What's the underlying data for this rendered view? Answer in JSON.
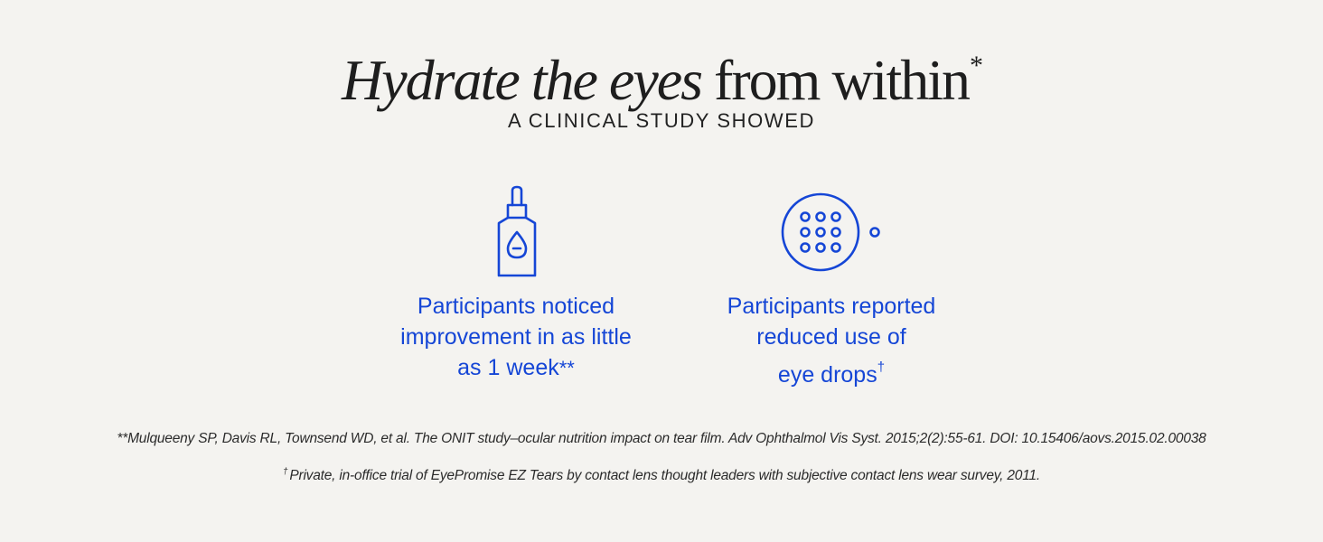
{
  "headline": {
    "italic_part": "Hydrate the eyes",
    "plain_part": " from within",
    "marker": "*"
  },
  "subheadline": "A CLINICAL STUDY SHOWED",
  "stats": [
    {
      "icon": "dropper-bottle-icon",
      "lines": [
        "Participants noticed",
        "improvement in as little",
        "as 1 week"
      ],
      "marker": "**"
    },
    {
      "icon": "circle-dots-icon",
      "lines": [
        "Participants reported",
        "reduced use of",
        "eye drops"
      ],
      "marker": "†"
    }
  ],
  "footnotes": {
    "study": {
      "marker": "**",
      "text": "Mulqueeny SP, Davis RL, Townsend WD, et al. The ONIT study–ocular nutrition impact on tear film. Adv Ophthalmol Vis Syst. 2015;2(2):55-61. DOI: 10.15406/aovs.2015.02.00038"
    },
    "trial": {
      "marker": "†",
      "text": "Private, in-office trial of EyePromise EZ Tears by contact lens thought leaders with subjective contact lens wear survey, 2011."
    }
  },
  "colors": {
    "background": "#f4f3f0",
    "accent_blue": "#1546d6",
    "text_dark": "#222222"
  }
}
